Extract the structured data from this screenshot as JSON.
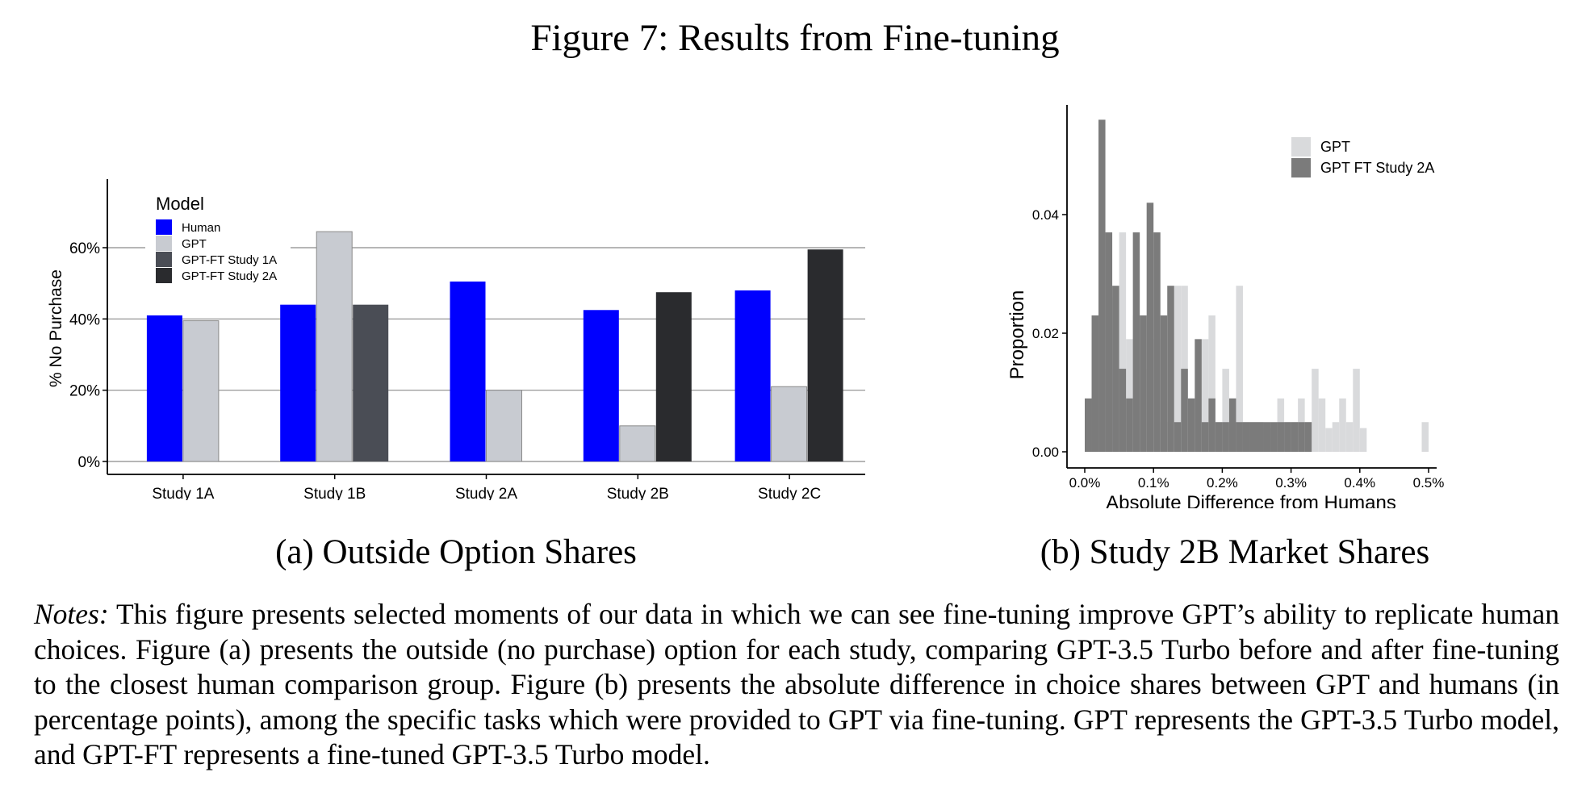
{
  "figure_title": "Figure 7: Results from Fine-tuning",
  "caption_a": "(a) Outside Option Shares",
  "caption_b": "(b) Study 2B Market Shares",
  "notes": {
    "label": "Notes:",
    "text": "This figure presents selected moments of our data in which we can see fine-tuning improve GPT’s ability to replicate human choices. Figure (a) presents the outside (no purchase) option for each study, comparing GPT-3.5 Turbo before and after fine-tuning to the closest human comparison group. Figure (b) presents the absolute difference in choice shares between GPT and humans (in percentage points), among the specific tasks which were provided to GPT via fine-tuning. GPT represents the GPT-3.5 Turbo model, and GPT-FT represents a fine-tuned GPT-3.5 Turbo model."
  },
  "chart_data": [
    {
      "type": "bar",
      "title": "",
      "xlabel": "",
      "ylabel": "% No Purchase",
      "ylim": [
        0,
        0.68
      ],
      "yticks": [
        0,
        0.2,
        0.4,
        0.6
      ],
      "ytick_labels": [
        "0%",
        "20%",
        "40%",
        "60%"
      ],
      "grid": true,
      "legend_title": "Model",
      "legend_position": "top-left",
      "categories": [
        "Study 1A",
        "Study 1B",
        "Study 2A",
        "Study 2B",
        "Study 2C"
      ],
      "series": [
        {
          "name": "Human",
          "color": "#0000ff",
          "values": [
            0.41,
            0.44,
            0.505,
            0.425,
            0.48
          ]
        },
        {
          "name": "GPT",
          "color": "#c8cbd1",
          "values": [
            0.395,
            0.645,
            0.2,
            0.1,
            0.21
          ]
        },
        {
          "name": "GPT-FT Study 1A",
          "color": "#4a4d55",
          "values": [
            null,
            0.44,
            null,
            null,
            null
          ]
        },
        {
          "name": "GPT-FT Study 2A",
          "color": "#2a2b2e",
          "values": [
            null,
            null,
            null,
            0.475,
            0.595
          ]
        }
      ]
    },
    {
      "type": "histogram",
      "title": "",
      "xlabel": "Absolute Difference from Humans",
      "ylabel": "Proportion",
      "xlim": [
        0,
        0.5
      ],
      "ylim": [
        0,
        0.06
      ],
      "xticks": [
        0,
        0.1,
        0.2,
        0.3,
        0.4,
        0.5
      ],
      "xtick_labels": [
        "0.0%",
        "0.1%",
        "0.2%",
        "0.3%",
        "0.4%",
        "0.5%"
      ],
      "yticks": [
        0,
        0.02,
        0.04
      ],
      "ytick_labels": [
        "0.00",
        "0.02",
        "0.04"
      ],
      "legend_position": "top-right",
      "bin_width": 0.01,
      "series": [
        {
          "name": "GPT",
          "color": "#d9dadc",
          "bin_starts": [
            0.0,
            0.01,
            0.02,
            0.03,
            0.04,
            0.05,
            0.06,
            0.07,
            0.08,
            0.09,
            0.1,
            0.11,
            0.12,
            0.13,
            0.14,
            0.15,
            0.16,
            0.17,
            0.18,
            0.19,
            0.2,
            0.21,
            0.22,
            0.23,
            0.24,
            0.25,
            0.26,
            0.27,
            0.28,
            0.29,
            0.3,
            0.31,
            0.32,
            0.33,
            0.34,
            0.35,
            0.36,
            0.37,
            0.38,
            0.39,
            0.4,
            0.41,
            0.42,
            0.43,
            0.44,
            0.45,
            0.46,
            0.47,
            0.48,
            0.49,
            0.5
          ],
          "values": [
            0,
            0.02,
            0.023,
            0.014,
            0.026,
            0.037,
            0.019,
            0.023,
            0.023,
            0.014,
            0.019,
            0.005,
            0.005,
            0.028,
            0.028,
            0.009,
            0.005,
            0.019,
            0.023,
            0.005,
            0.014,
            0.009,
            0.028,
            0.005,
            0.005,
            0.005,
            0.004,
            0.004,
            0.009,
            0.005,
            0.005,
            0.009,
            0.005,
            0.014,
            0.009,
            0.004,
            0.005,
            0.009,
            0.005,
            0.014,
            0.004,
            0,
            0,
            0,
            0,
            0,
            0,
            0,
            0,
            0.005,
            0
          ]
        },
        {
          "name": "GPT FT Study 2A",
          "color": "#7b7b7b",
          "bin_starts": [
            0.0,
            0.01,
            0.02,
            0.03,
            0.04,
            0.05,
            0.06,
            0.07,
            0.08,
            0.09,
            0.1,
            0.11,
            0.12,
            0.13,
            0.14,
            0.15,
            0.16,
            0.17,
            0.18,
            0.19,
            0.2,
            0.21,
            0.22,
            0.23,
            0.24,
            0.25,
            0.26,
            0.27,
            0.28,
            0.29,
            0.3,
            0.31,
            0.32
          ],
          "values": [
            0.009,
            0.023,
            0.056,
            0.037,
            0.028,
            0.014,
            0.009,
            0.037,
            0.023,
            0.042,
            0.037,
            0.023,
            0.028,
            0.005,
            0.014,
            0.009,
            0.019,
            0.005,
            0.009,
            0.005,
            0.005,
            0.009,
            0.005,
            0.005,
            0.005,
            0.005,
            0.005,
            0.005,
            0.005,
            0.005,
            0.005,
            0.005,
            0.005
          ]
        }
      ]
    }
  ]
}
